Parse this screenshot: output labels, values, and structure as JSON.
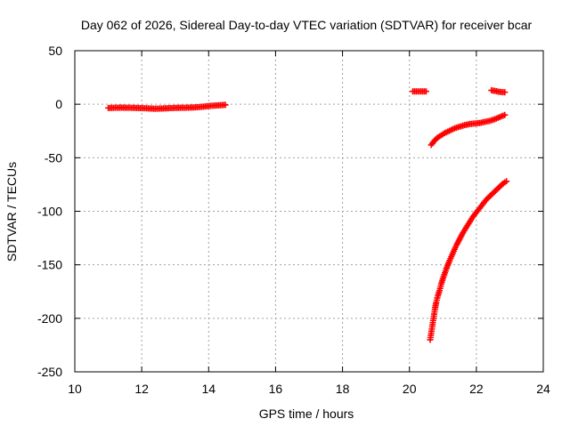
{
  "chart_data": {
    "type": "scatter",
    "title": "Day 062 of 2026, Sidereal Day-to-day VTEC variation (SDTVAR) for receiver bcar",
    "xlabel": "GPS time / hours",
    "ylabel": "SDTVAR / TECUs",
    "xlim": [
      10,
      24
    ],
    "ylim": [
      -250,
      50
    ],
    "x_ticks": [
      10,
      12,
      14,
      16,
      18,
      20,
      22,
      24
    ],
    "y_ticks": [
      50,
      0,
      -50,
      -100,
      -150,
      -200,
      -250
    ],
    "x_tick_labels": [
      "10",
      "12",
      "14",
      "16",
      "18",
      "20",
      "22",
      "24"
    ],
    "y_tick_labels": [
      "50",
      "0",
      "-50",
      "-100",
      "-150",
      "-200",
      "-250"
    ],
    "grid": true,
    "marker": "plus",
    "color": "#ff0000",
    "series": [
      {
        "points": [
          [
            11.0,
            -3.5
          ],
          [
            11.2,
            -3.3
          ],
          [
            11.4,
            -3.2
          ],
          [
            11.6,
            -3.3
          ],
          [
            11.8,
            -3.4
          ],
          [
            12.0,
            -3.6
          ],
          [
            12.2,
            -3.9
          ],
          [
            12.4,
            -4.2
          ],
          [
            12.6,
            -4.0
          ],
          [
            12.8,
            -3.7
          ],
          [
            13.0,
            -3.4
          ],
          [
            13.2,
            -3.3
          ],
          [
            13.4,
            -3.2
          ],
          [
            13.6,
            -2.9
          ],
          [
            13.8,
            -2.4
          ],
          [
            14.0,
            -1.7
          ],
          [
            14.2,
            -1.2
          ],
          [
            14.4,
            -0.8
          ],
          [
            14.5,
            -0.6
          ]
        ]
      },
      {
        "points": [
          [
            20.1,
            12.0
          ],
          [
            20.2,
            12.0
          ],
          [
            20.3,
            12.0
          ],
          [
            20.4,
            12.0
          ],
          [
            20.5,
            12.0
          ]
        ]
      },
      {
        "points": [
          [
            22.45,
            13.0
          ],
          [
            22.55,
            12.5
          ],
          [
            22.65,
            11.8
          ],
          [
            22.75,
            11.4
          ],
          [
            22.85,
            11.2
          ]
        ]
      },
      {
        "points": [
          [
            20.65,
            -38
          ],
          [
            20.75,
            -34
          ],
          [
            20.85,
            -31
          ],
          [
            20.95,
            -29
          ],
          [
            21.05,
            -27
          ],
          [
            21.15,
            -25.5
          ],
          [
            21.25,
            -24
          ],
          [
            21.35,
            -22.5
          ],
          [
            21.5,
            -21
          ],
          [
            21.65,
            -19.5
          ],
          [
            21.8,
            -18.5
          ],
          [
            21.95,
            -18
          ],
          [
            22.1,
            -17.5
          ],
          [
            22.25,
            -16.5
          ],
          [
            22.4,
            -15.5
          ],
          [
            22.55,
            -14
          ],
          [
            22.7,
            -12
          ],
          [
            22.85,
            -10
          ]
        ]
      },
      {
        "points": [
          [
            20.62,
            -220
          ],
          [
            20.65,
            -214
          ],
          [
            20.68,
            -208
          ],
          [
            20.71,
            -202
          ],
          [
            20.74,
            -196
          ],
          [
            20.77,
            -190
          ],
          [
            20.8,
            -185
          ],
          [
            20.85,
            -179
          ],
          [
            20.9,
            -174
          ],
          [
            20.95,
            -168
          ],
          [
            21.0,
            -163
          ],
          [
            21.1,
            -154
          ],
          [
            21.2,
            -146
          ],
          [
            21.3,
            -139
          ],
          [
            21.4,
            -132
          ],
          [
            21.5,
            -126
          ],
          [
            21.6,
            -120
          ],
          [
            21.7,
            -115
          ],
          [
            21.8,
            -110
          ],
          [
            21.9,
            -105
          ],
          [
            22.0,
            -101
          ],
          [
            22.1,
            -97
          ],
          [
            22.2,
            -93
          ],
          [
            22.3,
            -89
          ],
          [
            22.4,
            -86
          ],
          [
            22.5,
            -83
          ],
          [
            22.6,
            -80
          ],
          [
            22.7,
            -77
          ],
          [
            22.8,
            -74
          ],
          [
            22.9,
            -72
          ]
        ]
      }
    ]
  }
}
